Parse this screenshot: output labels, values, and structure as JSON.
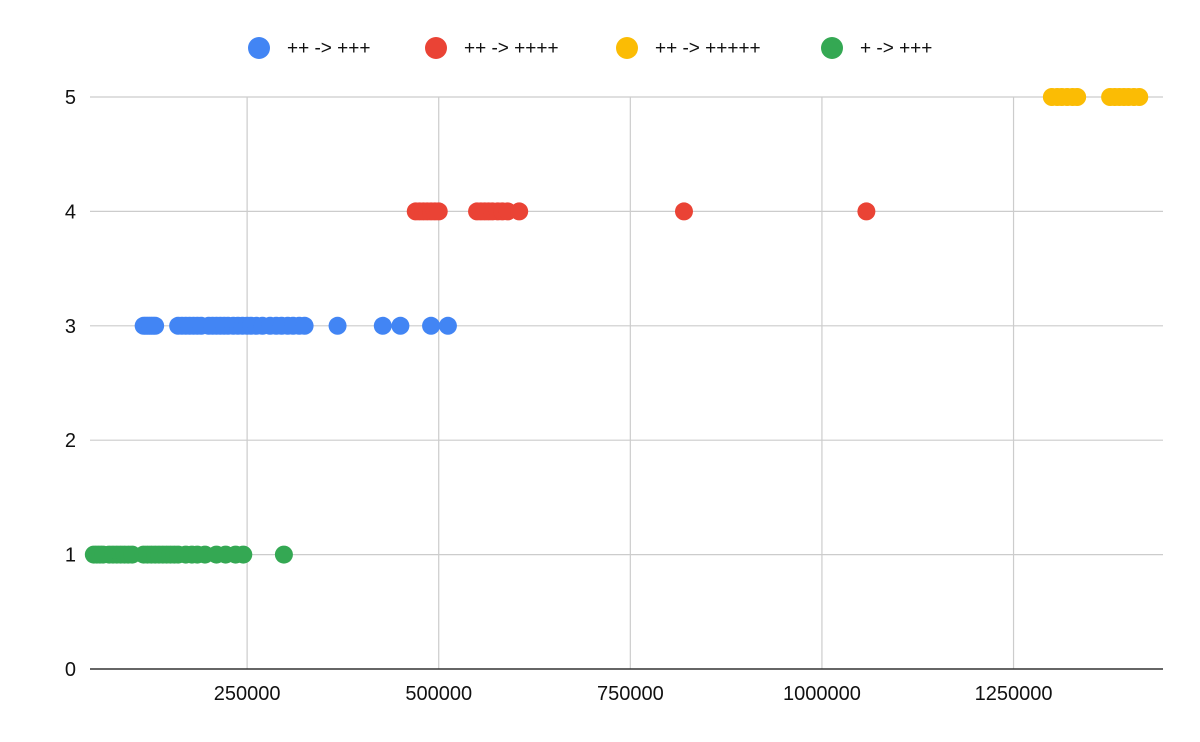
{
  "chart_data": {
    "type": "scatter",
    "title": "",
    "xlabel": "",
    "ylabel": "",
    "xlim": [
      45000,
      1445000
    ],
    "ylim": [
      0,
      5
    ],
    "x_ticks": [
      250000,
      500000,
      750000,
      1000000,
      1250000
    ],
    "x_tick_labels": [
      "250000",
      "500000",
      "750000",
      "1000000",
      "1250000"
    ],
    "y_ticks": [
      0,
      1,
      2,
      3,
      4,
      5
    ],
    "y_tick_labels": [
      "0",
      "1",
      "2",
      "3",
      "4",
      "5"
    ],
    "grid": true,
    "legend_position": "top",
    "series": [
      {
        "name": "++ -> +++",
        "color": "#4285F4",
        "points": [
          [
            115000,
            3
          ],
          [
            118000,
            3
          ],
          [
            121000,
            3
          ],
          [
            124000,
            3
          ],
          [
            127000,
            3
          ],
          [
            130000,
            3
          ],
          [
            160000,
            3
          ],
          [
            165000,
            3
          ],
          [
            170000,
            3
          ],
          [
            175000,
            3
          ],
          [
            180000,
            3
          ],
          [
            185000,
            3
          ],
          [
            190000,
            3
          ],
          [
            200000,
            3
          ],
          [
            205000,
            3
          ],
          [
            210000,
            3
          ],
          [
            215000,
            3
          ],
          [
            220000,
            3
          ],
          [
            225000,
            3
          ],
          [
            232000,
            3
          ],
          [
            238000,
            3
          ],
          [
            244000,
            3
          ],
          [
            250000,
            3
          ],
          [
            255000,
            3
          ],
          [
            262000,
            3
          ],
          [
            270000,
            3
          ],
          [
            280000,
            3
          ],
          [
            288000,
            3
          ],
          [
            295000,
            3
          ],
          [
            303000,
            3
          ],
          [
            310000,
            3
          ],
          [
            318000,
            3
          ],
          [
            325000,
            3
          ],
          [
            368000,
            3
          ],
          [
            427000,
            3
          ],
          [
            450000,
            3
          ],
          [
            490000,
            3
          ],
          [
            512000,
            3
          ]
        ]
      },
      {
        "name": "++ -> ++++",
        "color": "#EA4335",
        "points": [
          [
            470000,
            4
          ],
          [
            475000,
            4
          ],
          [
            480000,
            4
          ],
          [
            485000,
            4
          ],
          [
            490000,
            4
          ],
          [
            495000,
            4
          ],
          [
            500000,
            4
          ],
          [
            550000,
            4
          ],
          [
            555000,
            4
          ],
          [
            560000,
            4
          ],
          [
            565000,
            4
          ],
          [
            570000,
            4
          ],
          [
            577000,
            4
          ],
          [
            583000,
            4
          ],
          [
            590000,
            4
          ],
          [
            605000,
            4
          ],
          [
            820000,
            4
          ],
          [
            1058000,
            4
          ]
        ]
      },
      {
        "name": "++ -> +++++",
        "color": "#FBBC04",
        "points": [
          [
            1300000,
            5
          ],
          [
            1307000,
            5
          ],
          [
            1313000,
            5
          ],
          [
            1320000,
            5
          ],
          [
            1327000,
            5
          ],
          [
            1333000,
            5
          ],
          [
            1376000,
            5
          ],
          [
            1382000,
            5
          ],
          [
            1388000,
            5
          ],
          [
            1394000,
            5
          ],
          [
            1400000,
            5
          ],
          [
            1407000,
            5
          ],
          [
            1414000,
            5
          ]
        ]
      },
      {
        "name": "+ -> +++",
        "color": "#34A853",
        "points": [
          [
            50000,
            1
          ],
          [
            54000,
            1
          ],
          [
            58000,
            1
          ],
          [
            62000,
            1
          ],
          [
            70000,
            1
          ],
          [
            75000,
            1
          ],
          [
            80000,
            1
          ],
          [
            85000,
            1
          ],
          [
            90000,
            1
          ],
          [
            95000,
            1
          ],
          [
            100000,
            1
          ],
          [
            115000,
            1
          ],
          [
            120000,
            1
          ],
          [
            125000,
            1
          ],
          [
            130000,
            1
          ],
          [
            135000,
            1
          ],
          [
            140000,
            1
          ],
          [
            145000,
            1
          ],
          [
            150000,
            1
          ],
          [
            155000,
            1
          ],
          [
            160000,
            1
          ],
          [
            170000,
            1
          ],
          [
            178000,
            1
          ],
          [
            185000,
            1
          ],
          [
            195000,
            1
          ],
          [
            210000,
            1
          ],
          [
            222000,
            1
          ],
          [
            235000,
            1
          ],
          [
            245000,
            1
          ],
          [
            298000,
            1
          ]
        ]
      }
    ]
  }
}
